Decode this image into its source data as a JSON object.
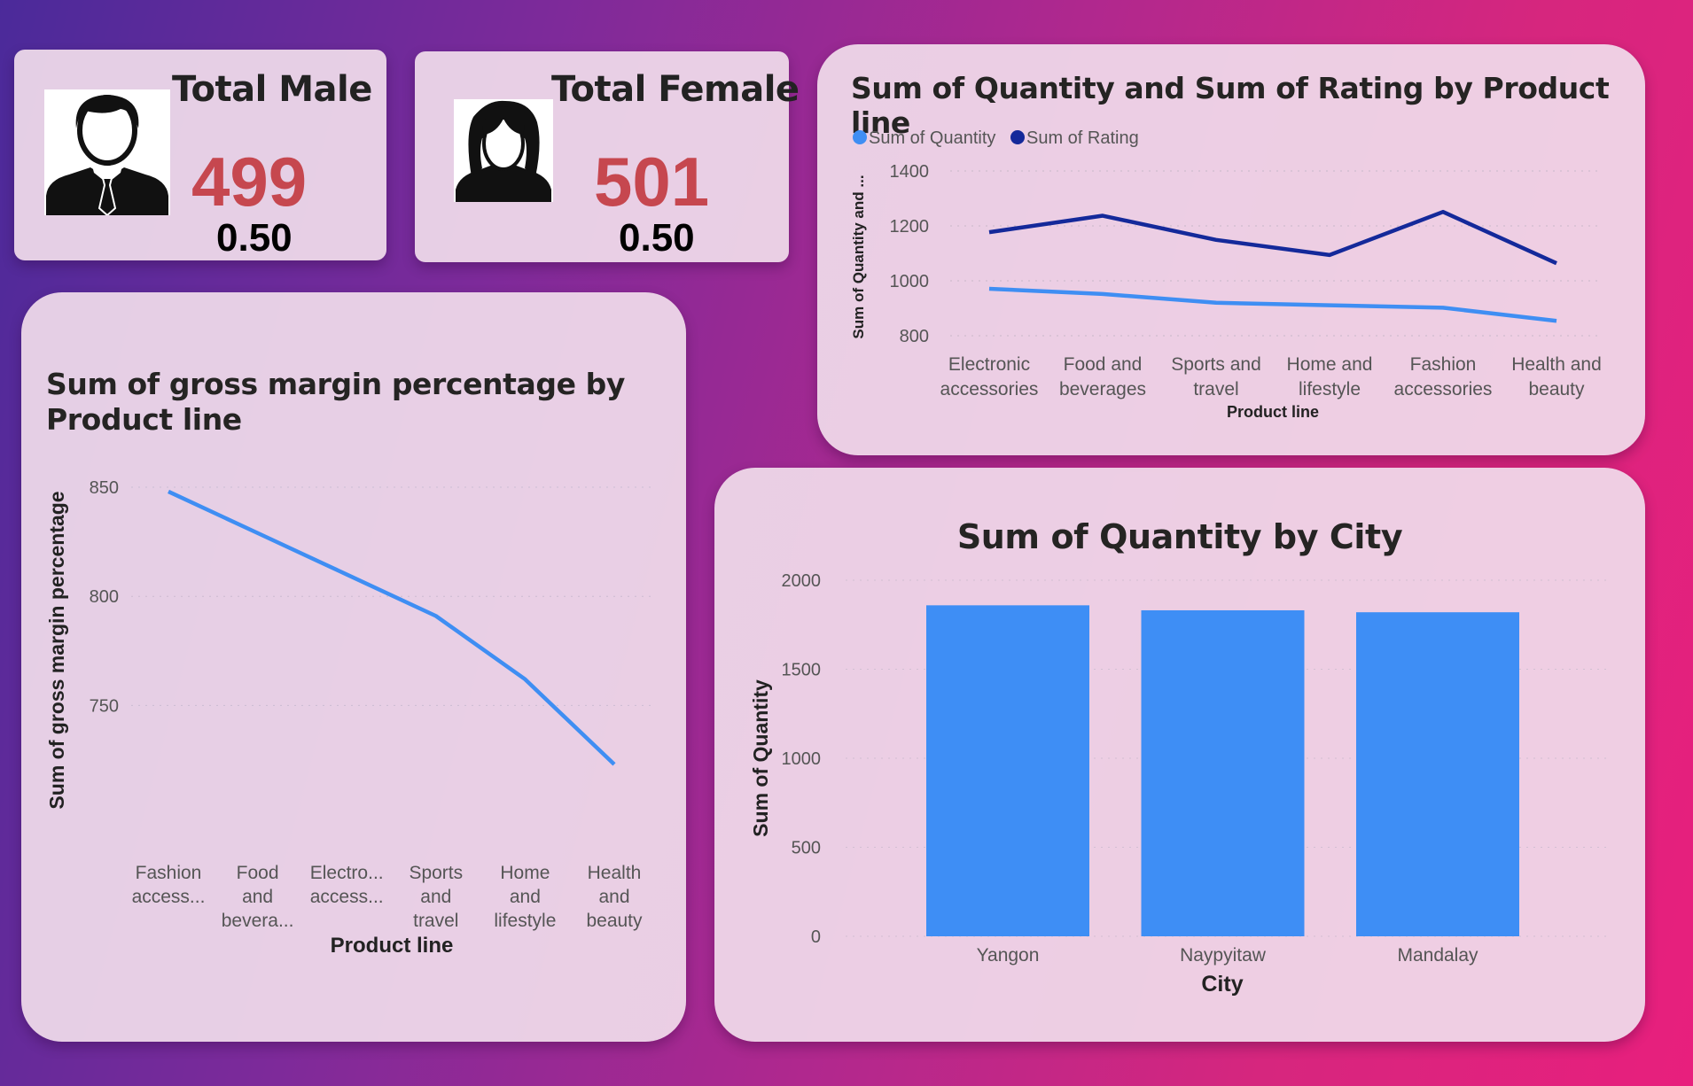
{
  "kpis": {
    "male": {
      "title": "Total Male",
      "value": "499",
      "ratio": "0.50",
      "icon": "man-avatar-icon"
    },
    "female": {
      "title": "Total Female",
      "value": "501",
      "ratio": "0.50",
      "icon": "woman-avatar-icon"
    }
  },
  "colors": {
    "quantity": "#3f8ef3",
    "rating": "#14299a",
    "bar": "#3e8ef5",
    "kpi_value": "#c6474f"
  },
  "chart_data": [
    {
      "id": "qty_rating",
      "type": "line",
      "title": "Sum of Quantity and Sum of Rating by Product line",
      "categories": [
        [
          "Electronic",
          "accessories"
        ],
        [
          "Food and",
          "beverages"
        ],
        [
          "Sports and",
          "travel"
        ],
        [
          "Home and",
          "lifestyle"
        ],
        [
          "Fashion",
          "accessories"
        ],
        [
          "Health and",
          "beauty"
        ]
      ],
      "series": [
        {
          "name": "Sum of Quantity",
          "values": [
            971,
            952,
            920,
            911,
            902,
            854
          ]
        },
        {
          "name": "Sum of Rating",
          "values": [
            1177,
            1237,
            1149,
            1094,
            1251,
            1064
          ]
        }
      ],
      "xlabel": "Product line",
      "ylabel": "Sum of Quantity and ...",
      "ylim": [
        800,
        1400
      ],
      "yticks": [
        "800",
        "1000",
        "1200",
        "1400"
      ],
      "legend": "top-left",
      "grid": true
    },
    {
      "id": "gross_margin",
      "type": "line",
      "title": "Sum of gross margin percentage by Product line",
      "categories": [
        [
          "Fashion",
          "access..."
        ],
        [
          "Food",
          "and",
          "bevera..."
        ],
        [
          "Electro...",
          "access..."
        ],
        [
          "Sports",
          "and",
          "travel"
        ],
        [
          "Home",
          "and",
          "lifestyle"
        ],
        [
          "Health",
          "and",
          "beauty"
        ]
      ],
      "series": [
        {
          "values": [
            848,
            829,
            810,
            791,
            762,
            723
          ]
        }
      ],
      "xlabel": "Product line",
      "ylabel": "Sum of gross margin percentage",
      "ylim": [
        725,
        850
      ],
      "yticks": [
        "750",
        "800",
        "850"
      ],
      "grid": true
    },
    {
      "id": "qty_city",
      "type": "bar",
      "title": "Sum of Quantity by City",
      "categories": [
        "Yangon",
        "Naypyitaw",
        "Mandalay"
      ],
      "values": [
        1859,
        1831,
        1820
      ],
      "xlabel": "City",
      "ylabel": "Sum of Quantity",
      "ylim": [
        0,
        2000
      ],
      "yticks": [
        "0",
        "500",
        "1000",
        "1500",
        "2000"
      ],
      "grid": true
    }
  ]
}
